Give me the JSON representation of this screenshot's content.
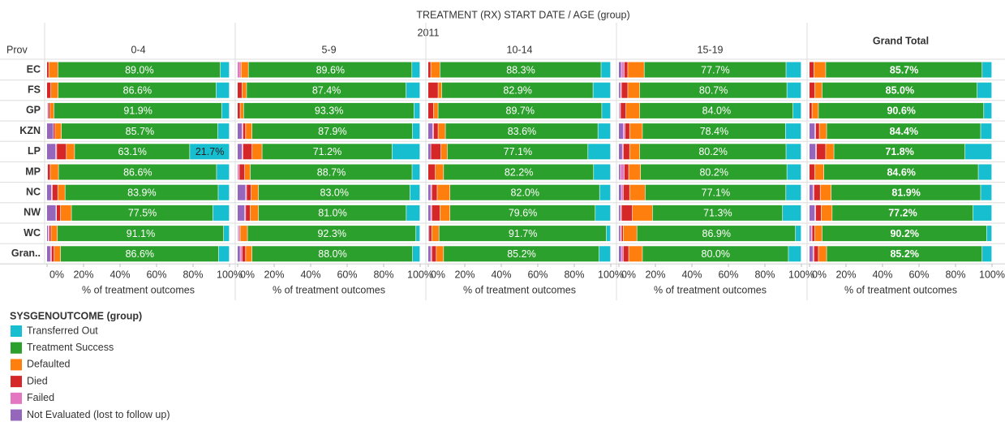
{
  "chart_data": {
    "type": "bar",
    "orientation": "horizontal",
    "stacked": true,
    "title": "TREATMENT (RX) START DATE  /  AGE (group)",
    "subtitle": "2011",
    "row_header": "Prov",
    "categories": [
      "EC",
      "FS",
      "GP",
      "KZN",
      "LP",
      "MP",
      "NC",
      "NW",
      "WC",
      "Gran.."
    ],
    "panels": [
      "0-4",
      "5-9",
      "10-14",
      "15-19",
      "Grand Total"
    ],
    "xlabel": "% of treatment outcomes",
    "xlim": [
      0,
      100
    ],
    "xticks": [
      {
        "value": 0,
        "label": "0%"
      },
      {
        "value": 20,
        "label": "20%"
      },
      {
        "value": 40,
        "label": "40%"
      },
      {
        "value": 60,
        "label": "60%"
      },
      {
        "value": 80,
        "label": "80%"
      },
      {
        "value": 100,
        "label": "100%"
      }
    ],
    "legend_title": "SYSGENOUTCOME (group)",
    "series": [
      {
        "name": "Transferred Out",
        "color": "#17becf",
        "values": [
          [
            4.9,
            7.2,
            4.2,
            6.3,
            21.7,
            7.0,
            6.1,
            9.0,
            3.1,
            5.9
          ],
          [
            4.4,
            7.6,
            3.3,
            4.1,
            15.3,
            4.3,
            5.5,
            7.5,
            2.2,
            4.0
          ],
          [
            5.2,
            9.6,
            4.8,
            6.9,
            12.4,
            9.3,
            6.0,
            8.4,
            2.3,
            6.3
          ],
          [
            8.3,
            7.8,
            4.5,
            8.6,
            8.3,
            7.8,
            8.4,
            10.2,
            3.1,
            7.0
          ],
          [
            5.3,
            8.0,
            4.4,
            6.1,
            14.7,
            7.4,
            6.1,
            10.3,
            2.8,
            5.3
          ]
        ],
        "value_labels": [
          [
            null,
            null,
            null,
            null,
            "21.7%",
            null,
            null,
            null,
            null,
            null
          ],
          [
            null,
            null,
            null,
            null,
            null,
            null,
            null,
            null,
            null,
            null
          ],
          [
            null,
            null,
            null,
            null,
            null,
            null,
            null,
            null,
            null,
            null
          ],
          [
            null,
            null,
            null,
            null,
            null,
            null,
            null,
            null,
            null,
            null
          ],
          [
            null,
            null,
            null,
            null,
            null,
            null,
            null,
            null,
            null,
            null
          ]
        ]
      },
      {
        "name": "Treatment Success",
        "color": "#2ca02c",
        "values": [
          [
            89.0,
            86.6,
            91.9,
            85.7,
            63.1,
            86.6,
            83.9,
            77.5,
            91.1,
            86.6
          ],
          [
            89.6,
            87.4,
            93.3,
            87.9,
            71.2,
            88.7,
            83.0,
            81.0,
            92.3,
            88.0
          ],
          [
            88.3,
            82.9,
            89.7,
            83.6,
            77.1,
            82.2,
            82.0,
            79.6,
            91.7,
            85.2
          ],
          [
            77.7,
            80.7,
            84.0,
            78.4,
            80.2,
            80.2,
            77.1,
            71.3,
            86.9,
            80.0
          ],
          [
            85.7,
            85.0,
            90.6,
            84.4,
            71.8,
            84.6,
            81.9,
            77.2,
            90.2,
            85.2
          ]
        ],
        "value_labels": [
          [
            "89.0%",
            "86.6%",
            "91.9%",
            "85.7%",
            "63.1%",
            "86.6%",
            "83.9%",
            "77.5%",
            "91.1%",
            "86.6%"
          ],
          [
            "89.6%",
            "87.4%",
            "93.3%",
            "87.9%",
            "71.2%",
            "88.7%",
            "83.0%",
            "81.0%",
            "92.3%",
            "88.0%"
          ],
          [
            "88.3%",
            "82.9%",
            "89.7%",
            "83.6%",
            "77.1%",
            "82.2%",
            "82.0%",
            "79.6%",
            "91.7%",
            "85.2%"
          ],
          [
            "77.7%",
            "80.7%",
            "84.0%",
            "78.4%",
            "80.2%",
            "80.2%",
            "77.1%",
            "71.3%",
            "86.9%",
            "80.0%"
          ],
          [
            "85.7%",
            "85.0%",
            "90.6%",
            "84.4%",
            "71.8%",
            "84.6%",
            "81.9%",
            "77.2%",
            "90.2%",
            "85.2%"
          ]
        ]
      },
      {
        "name": "Defaulted",
        "color": "#ff7f0e",
        "values": [
          [
            5.0,
            4.0,
            2.2,
            3.5,
            4.5,
            4.5,
            4.0,
            6.0,
            3.5,
            3.5
          ],
          [
            4.0,
            2.5,
            1.9,
            3.5,
            5.5,
            3.0,
            4.0,
            4.5,
            4.0,
            3.5
          ],
          [
            5.0,
            2.0,
            2.5,
            4.0,
            3.5,
            4.5,
            7.0,
            5.5,
            4.0,
            4.0
          ],
          [
            9.0,
            6.5,
            7.5,
            7.0,
            5.5,
            6.5,
            8.5,
            11.0,
            7.5,
            7.5
          ],
          [
            6.5,
            4.0,
            3.5,
            4.0,
            4.5,
            5.0,
            6.0,
            6.0,
            4.0,
            4.5
          ]
        ]
      },
      {
        "name": "Died",
        "color": "#d62728",
        "values": [
          [
            1.1,
            2.2,
            1.0,
            1.0,
            5.3,
            1.5,
            3.0,
            2.2,
            1.0,
            1.5
          ],
          [
            0.5,
            2.5,
            1.5,
            1.5,
            5.0,
            3.0,
            2.5,
            2.5,
            0.5,
            2.0
          ],
          [
            1.5,
            5.5,
            3.0,
            2.5,
            5.5,
            4.0,
            3.0,
            4.5,
            1.5,
            2.5
          ],
          [
            2.0,
            3.5,
            3.0,
            2.5,
            3.5,
            2.5,
            3.5,
            6.0,
            1.0,
            3.0
          ],
          [
            2.5,
            3.0,
            1.5,
            2.0,
            5.0,
            3.0,
            3.5,
            3.0,
            1.5,
            2.5
          ]
        ]
      },
      {
        "name": "Failed",
        "color": "#e377c2",
        "values": [
          [
            0,
            0,
            0.4,
            0,
            0.5,
            0.2,
            0.5,
            0.3,
            0.5,
            0.5
          ],
          [
            1.5,
            0,
            0,
            0.5,
            0.5,
            1.0,
            0.5,
            0.5,
            0.5,
            1.0
          ],
          [
            0,
            0,
            0,
            0.5,
            0,
            0,
            0.5,
            0.5,
            0,
            0.5
          ],
          [
            1.5,
            0.5,
            0.5,
            1.0,
            0.5,
            2.0,
            1.0,
            0.5,
            0.5,
            1.0
          ],
          [
            0,
            0,
            0,
            0.5,
            0.5,
            0,
            0.5,
            0.5,
            0.5,
            0.5
          ]
        ]
      },
      {
        "name": "Not Evaluated (lost to follow up)",
        "color": "#9467bd",
        "values": [
          [
            0,
            0,
            0.3,
            3.5,
            4.9,
            0.2,
            2.5,
            5.0,
            0.8,
            2.0
          ],
          [
            0,
            0,
            0,
            2.5,
            2.5,
            0,
            4.5,
            4.0,
            0.5,
            1.5
          ],
          [
            0,
            0,
            0,
            2.5,
            1.5,
            0,
            1.5,
            1.5,
            0.5,
            1.5
          ],
          [
            1.5,
            1.0,
            0.5,
            2.5,
            2.0,
            1.0,
            1.5,
            1.0,
            1.0,
            1.5
          ],
          [
            0,
            0,
            0,
            3.0,
            3.5,
            0,
            2.0,
            3.0,
            1.0,
            2.0
          ]
        ]
      }
    ]
  }
}
